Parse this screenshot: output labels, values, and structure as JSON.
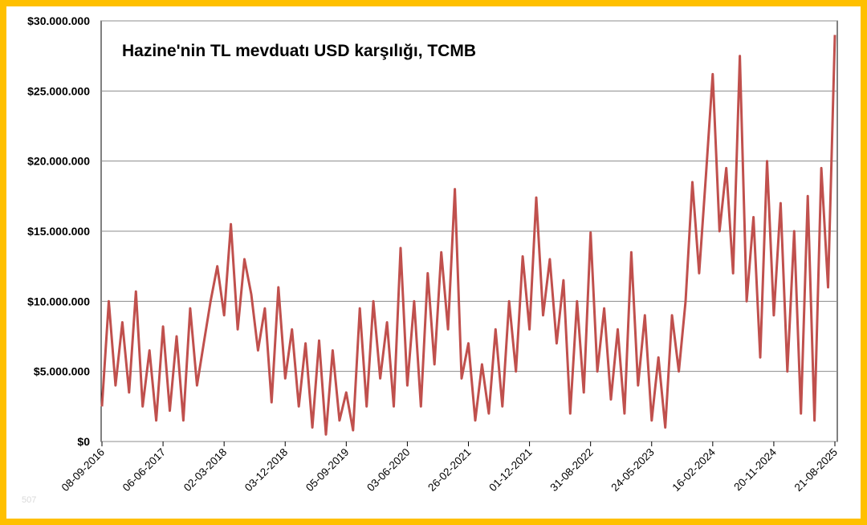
{
  "chart_data": {
    "type": "line",
    "title": "Hazine'nin TL mevduatı USD karşılığı, TCMB",
    "xlabel": "",
    "ylabel": "",
    "ylim": [
      0,
      30000000
    ],
    "yticks": [
      "$0",
      "$5.000.000",
      "$10.000.000",
      "$15.000.000",
      "$20.000.000",
      "$25.000.000",
      "$30.000.000"
    ],
    "xticks": [
      "08-09-2016",
      "06-06-2017",
      "02-03-2018",
      "03-12-2018",
      "05-09-2019",
      "03-06-2020",
      "26-02-2021",
      "01-12-2021",
      "31-08-2022",
      "24-05-2023",
      "16-02-2024",
      "20-11-2024",
      "21-08-2025"
    ],
    "grid": true,
    "legend": "none",
    "color": "#c0504d",
    "series": [
      {
        "x": [
          "2016-09",
          "2016-10",
          "2016-11",
          "2016-12",
          "2017-01",
          "2017-02",
          "2017-03",
          "2017-04",
          "2017-05",
          "2017-06",
          "2017-07",
          "2017-08",
          "2017-09",
          "2017-10",
          "2017-11",
          "2017-12",
          "2018-01",
          "2018-02",
          "2018-03",
          "2018-04",
          "2018-05",
          "2018-06",
          "2018-07",
          "2018-08",
          "2018-09",
          "2018-10",
          "2018-11",
          "2018-12",
          "2019-01",
          "2019-02",
          "2019-03",
          "2019-04",
          "2019-05",
          "2019-06",
          "2019-07",
          "2019-08",
          "2019-09",
          "2019-10",
          "2019-11",
          "2019-12",
          "2020-01",
          "2020-02",
          "2020-03",
          "2020-04",
          "2020-05",
          "2020-06",
          "2020-07",
          "2020-08",
          "2020-09",
          "2020-10",
          "2020-11",
          "2020-12",
          "2021-01",
          "2021-02",
          "2021-03",
          "2021-04",
          "2021-05",
          "2021-06",
          "2021-07",
          "2021-08",
          "2021-09",
          "2021-10",
          "2021-11",
          "2021-12",
          "2022-01",
          "2022-02",
          "2022-03",
          "2022-04",
          "2022-05",
          "2022-06",
          "2022-07",
          "2022-08",
          "2022-09",
          "2022-10",
          "2022-11",
          "2022-12",
          "2023-01",
          "2023-02",
          "2023-03",
          "2023-04",
          "2023-05",
          "2023-06",
          "2023-07",
          "2023-08",
          "2023-09",
          "2023-10",
          "2023-11",
          "2023-12",
          "2024-01",
          "2024-02",
          "2024-03",
          "2024-04",
          "2024-05",
          "2024-06",
          "2024-07",
          "2024-08",
          "2024-09",
          "2024-10",
          "2024-11",
          "2024-12",
          "2025-01",
          "2025-02",
          "2025-03",
          "2025-04",
          "2025-05",
          "2025-06",
          "2025-07",
          "2025-08",
          "2025-09"
        ],
        "values": [
          2500000,
          10000000,
          4000000,
          8500000,
          3500000,
          10700000,
          2500000,
          6500000,
          1500000,
          8200000,
          2200000,
          7500000,
          1500000,
          9500000,
          4000000,
          7000000,
          10000000,
          12500000,
          9000000,
          15500000,
          8000000,
          13000000,
          10500000,
          6500000,
          9500000,
          2800000,
          11000000,
          4500000,
          8000000,
          2500000,
          7000000,
          1000000,
          7200000,
          500000,
          6500000,
          1500000,
          3500000,
          800000,
          9500000,
          2500000,
          10000000,
          4500000,
          8500000,
          2500000,
          13800000,
          4000000,
          10000000,
          2500000,
          12000000,
          5500000,
          13500000,
          8000000,
          18000000,
          4500000,
          7000000,
          1500000,
          5500000,
          2000000,
          8000000,
          2500000,
          10000000,
          5000000,
          13200000,
          8000000,
          17400000,
          9000000,
          13000000,
          7000000,
          11500000,
          2000000,
          10000000,
          3500000,
          14900000,
          5000000,
          9500000,
          3000000,
          8000000,
          2000000,
          13500000,
          4000000,
          9000000,
          1500000,
          6000000,
          1000000,
          9000000,
          5000000,
          10000000,
          18500000,
          12000000,
          19000000,
          26200000,
          15000000,
          19500000,
          12000000,
          27500000,
          10000000,
          16000000,
          6000000,
          20000000,
          9000000,
          17000000,
          5000000,
          15000000,
          2000000,
          17500000,
          1500000,
          19500000,
          11000000,
          29000000
        ]
      }
    ]
  },
  "page": {
    "corner_text": "507"
  }
}
